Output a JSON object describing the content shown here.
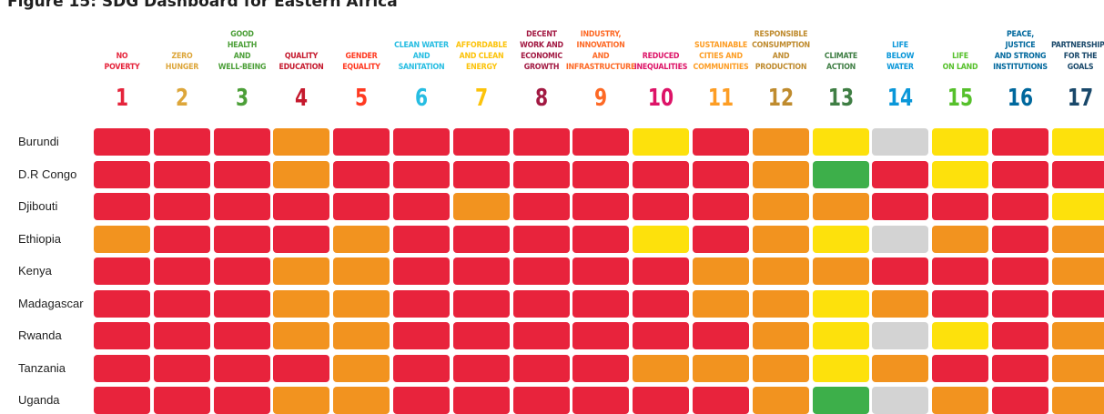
{
  "title": "Figure 15: SDG Dashboard for Eastern Africa",
  "colors": {
    "red": "#e8233c",
    "orange": "#f2931f",
    "yellow": "#fde10c",
    "green": "#3daf4a",
    "grey": "#d3d3d3"
  },
  "chart_data": {
    "type": "heatmap",
    "goals": [
      {
        "number": "1",
        "label": "NO\nPOVERTY",
        "color": "#e5243b"
      },
      {
        "number": "2",
        "label": "ZERO\nHUNGER",
        "color": "#dda63a"
      },
      {
        "number": "3",
        "label": "GOOD HEALTH\nAND\nWELL-BEING",
        "color": "#4c9f38"
      },
      {
        "number": "4",
        "label": "QUALITY\nEDUCATION",
        "color": "#c5192d"
      },
      {
        "number": "5",
        "label": "GENDER\nEQUALITY",
        "color": "#ff3a21"
      },
      {
        "number": "6",
        "label": "CLEAN WATER\nAND\nSANITATION",
        "color": "#26bde2"
      },
      {
        "number": "7",
        "label": "AFFORDABLE\nAND CLEAN\nENERGY",
        "color": "#fcc30b"
      },
      {
        "number": "8",
        "label": "DECENT\nWORK AND\nECONOMIC\nGROWTH",
        "color": "#a21942"
      },
      {
        "number": "9",
        "label": "INDUSTRY,\nINNOVATION\nAND\nINFRASTRUCTURE",
        "color": "#fd6925"
      },
      {
        "number": "10",
        "label": "REDUCED\nINEQUALITIES",
        "color": "#dd1367"
      },
      {
        "number": "11",
        "label": "SUSTAINABLE\nCITIES AND\nCOMMUNITIES",
        "color": "#fd9d24"
      },
      {
        "number": "12",
        "label": "RESPONSIBLE\nCONSUMPTION\nAND\nPRODUCTION",
        "color": "#bf8b2e"
      },
      {
        "number": "13",
        "label": "CLIMATE\nACTION",
        "color": "#3f7e44"
      },
      {
        "number": "14",
        "label": "LIFE\nBELOW\nWATER",
        "color": "#0a97d9"
      },
      {
        "number": "15",
        "label": "LIFE\nON LAND",
        "color": "#56c02b"
      },
      {
        "number": "16",
        "label": "PEACE,\nJUSTICE\nAND STRONG\nINSTITUTIONS",
        "color": "#00689d"
      },
      {
        "number": "17",
        "label": "PARTNERSHIPS\nFOR THE\nGOALS",
        "color": "#19486a"
      }
    ],
    "rows": [
      {
        "country": "Burundi",
        "cells": [
          "red",
          "red",
          "red",
          "orange",
          "red",
          "red",
          "red",
          "red",
          "red",
          "yellow",
          "red",
          "orange",
          "yellow",
          "grey",
          "yellow",
          "red",
          "yellow"
        ]
      },
      {
        "country": "D.R Congo",
        "cells": [
          "red",
          "red",
          "red",
          "orange",
          "red",
          "red",
          "red",
          "red",
          "red",
          "red",
          "red",
          "orange",
          "green",
          "red",
          "yellow",
          "red",
          "red"
        ]
      },
      {
        "country": "Djibouti",
        "cells": [
          "red",
          "red",
          "red",
          "red",
          "red",
          "red",
          "orange",
          "red",
          "red",
          "red",
          "red",
          "orange",
          "orange",
          "red",
          "red",
          "red",
          "yellow"
        ]
      },
      {
        "country": "Ethiopia",
        "cells": [
          "orange",
          "red",
          "red",
          "red",
          "orange",
          "red",
          "red",
          "red",
          "red",
          "yellow",
          "red",
          "orange",
          "yellow",
          "grey",
          "orange",
          "red",
          "orange"
        ]
      },
      {
        "country": "Kenya",
        "cells": [
          "red",
          "red",
          "red",
          "orange",
          "orange",
          "red",
          "red",
          "red",
          "red",
          "red",
          "orange",
          "orange",
          "orange",
          "red",
          "red",
          "red",
          "orange"
        ]
      },
      {
        "country": "Madagascar",
        "cells": [
          "red",
          "red",
          "red",
          "orange",
          "orange",
          "red",
          "red",
          "red",
          "red",
          "red",
          "orange",
          "orange",
          "yellow",
          "orange",
          "red",
          "red",
          "red"
        ]
      },
      {
        "country": "Rwanda",
        "cells": [
          "red",
          "red",
          "red",
          "orange",
          "orange",
          "red",
          "red",
          "red",
          "red",
          "red",
          "red",
          "orange",
          "yellow",
          "grey",
          "yellow",
          "red",
          "orange"
        ]
      },
      {
        "country": "Tanzania",
        "cells": [
          "red",
          "red",
          "red",
          "red",
          "orange",
          "red",
          "red",
          "red",
          "red",
          "orange",
          "orange",
          "orange",
          "yellow",
          "orange",
          "red",
          "red",
          "orange"
        ]
      },
      {
        "country": "Uganda",
        "cells": [
          "red",
          "red",
          "red",
          "orange",
          "orange",
          "red",
          "red",
          "red",
          "red",
          "red",
          "red",
          "orange",
          "green",
          "grey",
          "orange",
          "red",
          "orange"
        ]
      }
    ]
  }
}
